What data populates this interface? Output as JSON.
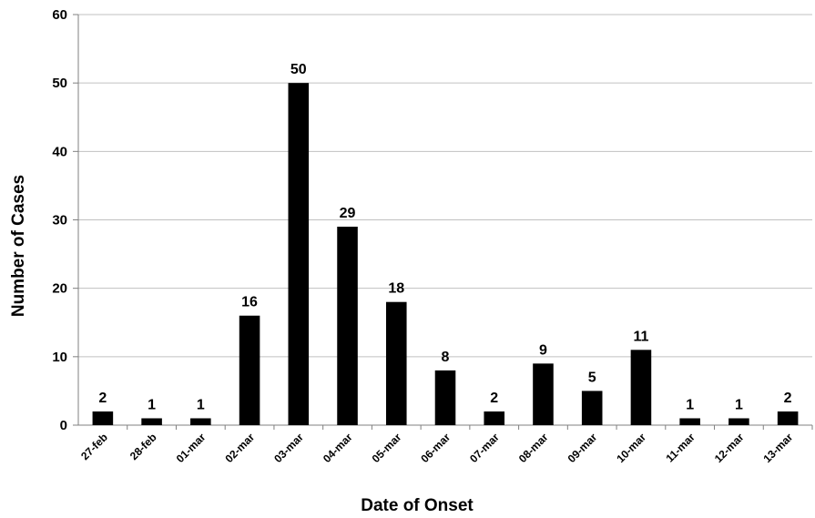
{
  "chart_data": {
    "type": "bar",
    "title": "",
    "xlabel": "Date of Onset",
    "ylabel": "Number of Cases",
    "ylim": [
      0,
      60
    ],
    "yticks": [
      "0",
      "10",
      "20",
      "30",
      "40",
      "50",
      "60"
    ],
    "grid": true,
    "legend": "none",
    "bar_color": "#000000",
    "grid_color": "#c0c0c0",
    "categories": [
      "27-feb",
      "28-feb",
      "01-mar",
      "02-mar",
      "03-mar",
      "04-mar",
      "05-mar",
      "06-mar",
      "07-mar",
      "08-mar",
      "09-mar",
      "10-mar",
      "11-mar",
      "12-mar",
      "13-mar"
    ],
    "values": [
      2,
      1,
      1,
      16,
      50,
      29,
      18,
      8,
      2,
      9,
      5,
      11,
      1,
      1,
      2
    ],
    "data_labels": [
      "2",
      "1",
      "1",
      "16",
      "50",
      "29",
      "18",
      "8",
      "2",
      "9",
      "5",
      "11",
      "1",
      "1",
      "2"
    ]
  }
}
